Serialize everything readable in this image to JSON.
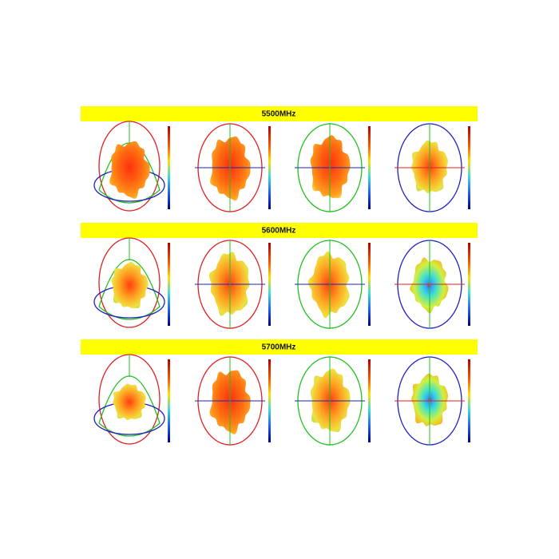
{
  "sections": [
    {
      "title": "5500MHz"
    },
    {
      "title": "5600MHz"
    },
    {
      "title": "5700MHz"
    }
  ]
}
